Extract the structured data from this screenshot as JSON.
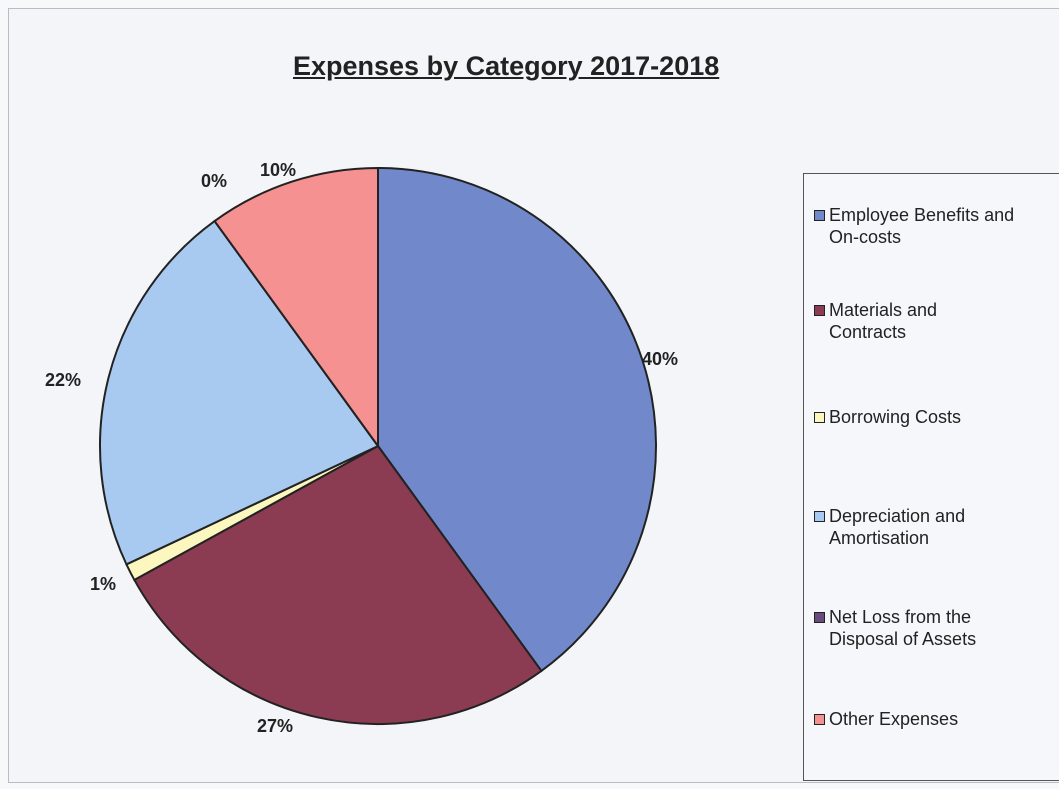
{
  "chart_data": {
    "type": "pie",
    "title": "Expenses by Category 2017-2018",
    "legend_position": "right",
    "slices": [
      {
        "name": "Employee Benefits and\nOn-costs",
        "value": 40,
        "label": "40%",
        "color": "#7189cb"
      },
      {
        "name": "Materials and\nContracts",
        "value": 27,
        "label": "27%",
        "color": "#8b3b52"
      },
      {
        "name": "Borrowing Costs",
        "value": 1,
        "label": "1%",
        "color": "#fbf7bf"
      },
      {
        "name": "Depreciation and\nAmortisation",
        "value": 22,
        "label": "22%",
        "color": "#a9caf0"
      },
      {
        "name": "Net Loss from the\nDisposal of Assets",
        "value": 0,
        "label": "0%",
        "color": "#6a4c7c"
      },
      {
        "name": "Other Expenses",
        "value": 10,
        "label": "10%",
        "color": "#f59191"
      }
    ]
  }
}
